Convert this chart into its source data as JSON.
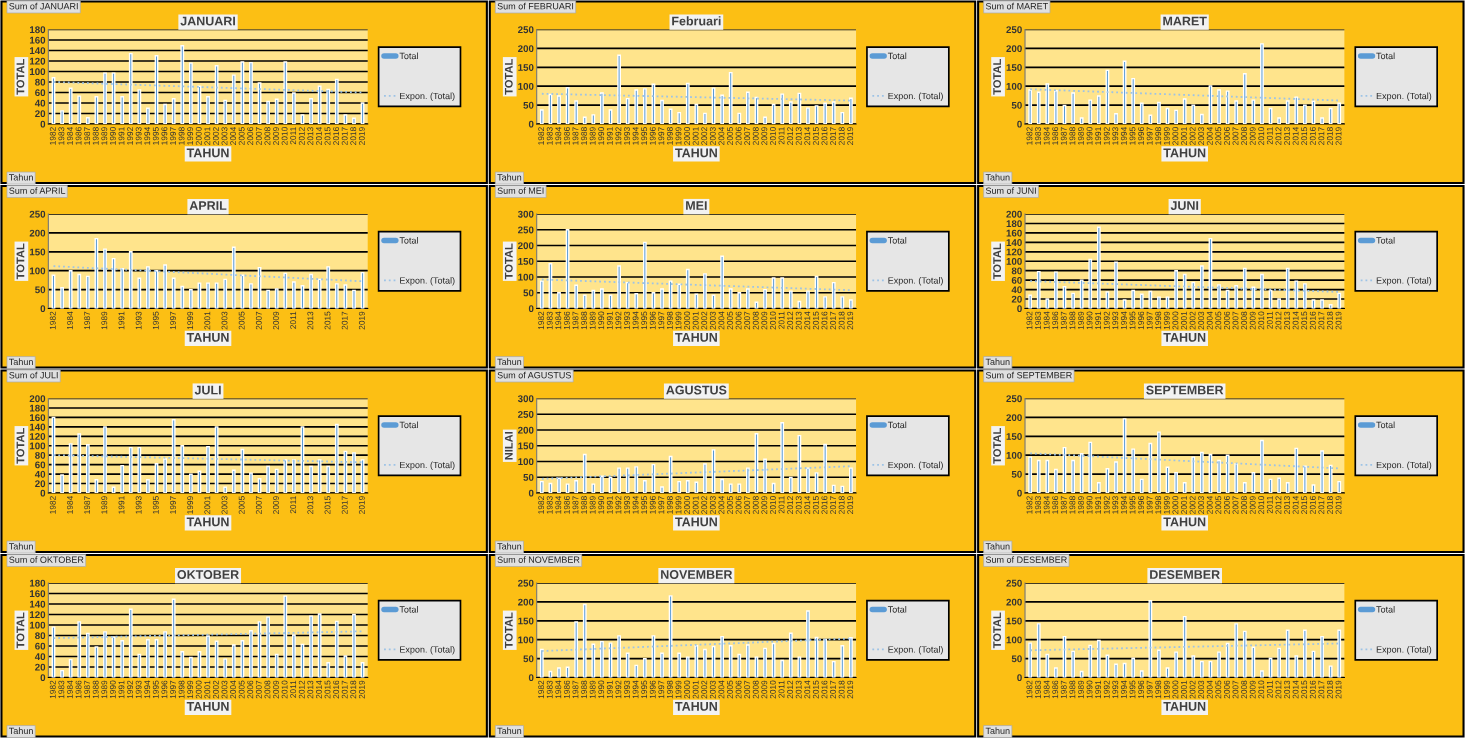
{
  "chart_data": [
    {
      "type": "bar",
      "title": "JANUARI",
      "xlabel": "TAHUN",
      "ylabel": "TOTAL",
      "ylim": [
        0,
        180
      ],
      "yticks": [
        0,
        20,
        40,
        60,
        80,
        100,
        120,
        140,
        160,
        180
      ],
      "grid": "y",
      "legend": "right",
      "annotations": [
        "Sum of JANUARI",
        "Tahun"
      ],
      "categories": [
        "1982",
        "1983",
        "1984",
        "1986",
        "1987",
        "1988",
        "1989",
        "1990",
        "1991",
        "1992",
        "1993",
        "1994",
        "1995",
        "1996",
        "1997",
        "1998",
        "1999",
        "2000",
        "2001",
        "2002",
        "2003",
        "2004",
        "2005",
        "2006",
        "2007",
        "2008",
        "2009",
        "2010",
        "2011",
        "2012",
        "2013",
        "2014",
        "2015",
        "2016",
        "2017",
        "2018",
        "2019"
      ],
      "series": [
        {
          "name": "Total",
          "color": "#5b9bd5",
          "values": [
            88,
            25,
            68,
            53,
            12,
            52,
            97,
            97,
            52,
            134,
            65,
            30,
            130,
            37,
            48,
            149,
            116,
            72,
            52,
            111,
            45,
            93,
            118,
            117,
            78,
            43,
            47,
            118,
            59,
            17,
            48,
            72,
            66,
            85,
            17,
            11,
            40
          ]
        },
        {
          "name": "Expon. (Total)",
          "type": "line",
          "line_style": "dotted",
          "color": "#9dc3e6",
          "values": [
            80,
            null,
            null,
            null,
            null,
            null,
            null,
            null,
            null,
            null,
            null,
            null,
            null,
            null,
            null,
            null,
            null,
            null,
            null,
            null,
            null,
            null,
            null,
            null,
            null,
            null,
            null,
            null,
            null,
            null,
            null,
            null,
            null,
            null,
            null,
            null,
            60
          ]
        }
      ]
    },
    {
      "type": "bar",
      "title": "Februari",
      "xlabel": "TAHUN",
      "ylabel": "TOTAL",
      "ylim": [
        0,
        250
      ],
      "yticks": [
        0,
        50,
        100,
        150,
        200,
        250
      ],
      "grid": "y",
      "legend": "right",
      "annotations": [
        "Sum of FEBRUARI",
        "Tahun"
      ],
      "categories": [
        "1982",
        "1983",
        "1984",
        "1986",
        "1987",
        "1988",
        "1989",
        "1990",
        "1991",
        "1992",
        "1993",
        "1994",
        "1995",
        "1996",
        "1997",
        "1998",
        "1999",
        "2000",
        "2001",
        "2002",
        "2003",
        "2004",
        "2005",
        "2006",
        "2007",
        "2008",
        "2009",
        "2010",
        "2011",
        "2012",
        "2013",
        "2014",
        "2015",
        "2016",
        "2017",
        "2018",
        "2019"
      ],
      "series": [
        {
          "name": "Total",
          "color": "#5b9bd5",
          "values": [
            37,
            78,
            74,
            96,
            61,
            18,
            24,
            82,
            37,
            182,
            67,
            90,
            93,
            105,
            62,
            39,
            30,
            107,
            52,
            28,
            95,
            76,
            136,
            28,
            84,
            70,
            18,
            52,
            79,
            58,
            81,
            42,
            48,
            55,
            58,
            30,
            68
          ]
        },
        {
          "name": "Expon. (Total)",
          "type": "line",
          "line_style": "dotted",
          "color": "#9dc3e6",
          "values": [
            80,
            null,
            null,
            null,
            null,
            null,
            null,
            null,
            null,
            null,
            null,
            null,
            null,
            null,
            null,
            null,
            null,
            null,
            null,
            null,
            null,
            null,
            null,
            null,
            null,
            null,
            null,
            null,
            null,
            null,
            null,
            null,
            null,
            null,
            null,
            null,
            62
          ]
        }
      ]
    },
    {
      "type": "bar",
      "title": "MARET",
      "xlabel": "TAHUN",
      "ylabel": "TOTAL",
      "ylim": [
        0,
        250
      ],
      "yticks": [
        0,
        50,
        100,
        150,
        200,
        250
      ],
      "grid": "y",
      "legend": "right",
      "annotations": [
        "Sum of MARET",
        "Tahun"
      ],
      "categories": [
        "1982",
        "1983",
        "1984",
        "1986",
        "1987",
        "1988",
        "1989",
        "1990",
        "1991",
        "1992",
        "1993",
        "1994",
        "1995",
        "1996",
        "1997",
        "1998",
        "1999",
        "2000",
        "2001",
        "2002",
        "2003",
        "2004",
        "2005",
        "2006",
        "2007",
        "2008",
        "2009",
        "2010",
        "2011",
        "2012",
        "2013",
        "2014",
        "2015",
        "2016",
        "2017",
        "2018",
        "2019"
      ],
      "series": [
        {
          "name": "Total",
          "color": "#5b9bd5",
          "values": [
            90,
            84,
            106,
            88,
            49,
            82,
            16,
            63,
            74,
            142,
            27,
            166,
            120,
            55,
            23,
            57,
            41,
            36,
            66,
            50,
            25,
            101,
            90,
            87,
            61,
            133,
            63,
            212,
            41,
            16,
            61,
            71,
            50,
            60,
            16,
            41,
            55
          ]
        },
        {
          "name": "Expon. (Total)",
          "type": "line",
          "line_style": "dotted",
          "color": "#9dc3e6",
          "values": [
            92,
            null,
            null,
            null,
            null,
            null,
            null,
            null,
            null,
            null,
            null,
            null,
            null,
            null,
            null,
            null,
            null,
            null,
            null,
            null,
            null,
            null,
            null,
            null,
            null,
            null,
            null,
            null,
            null,
            null,
            null,
            null,
            null,
            null,
            null,
            null,
            62
          ]
        }
      ]
    },
    {
      "type": "bar",
      "title": "APRIL",
      "xlabel": "TAHUN",
      "ylabel": "TOTAL",
      "ylim": [
        0,
        250
      ],
      "yticks": [
        0,
        50,
        100,
        150,
        200,
        250
      ],
      "grid": "y",
      "legend": "right",
      "annotations": [
        "Sum of APRIL",
        "Tahun"
      ],
      "categories": [
        "1982",
        null,
        "1984",
        null,
        "1987",
        null,
        "1989",
        null,
        "1991",
        null,
        "1993",
        null,
        "1995",
        null,
        "1997",
        null,
        "1999",
        null,
        "2001",
        null,
        "2003",
        null,
        "2005",
        null,
        "2007",
        null,
        "2009",
        null,
        "2011",
        null,
        "2013",
        null,
        "2015",
        null,
        "2017",
        null,
        "2019"
      ],
      "series": [
        {
          "name": "Total",
          "color": "#5b9bd5",
          "values": [
            88,
            55,
            100,
            90,
            85,
            185,
            157,
            132,
            105,
            150,
            80,
            110,
            100,
            115,
            80,
            58,
            50,
            67,
            67,
            67,
            77,
            162,
            88,
            65,
            108,
            48,
            52,
            93,
            70,
            60,
            90,
            77,
            110,
            65,
            62,
            48,
            95
          ]
        },
        {
          "name": "Expon. (Total)",
          "type": "line",
          "line_style": "dotted",
          "color": "#9dc3e6",
          "values": [
            112,
            null,
            null,
            null,
            null,
            null,
            null,
            null,
            null,
            null,
            null,
            null,
            null,
            null,
            null,
            null,
            null,
            null,
            null,
            null,
            null,
            null,
            null,
            null,
            null,
            null,
            null,
            null,
            null,
            null,
            null,
            null,
            null,
            null,
            null,
            null,
            72
          ]
        }
      ]
    },
    {
      "type": "bar",
      "title": "MEI",
      "xlabel": "TAHUN",
      "ylabel": "TOTAL",
      "ylim": [
        0,
        300
      ],
      "yticks": [
        0,
        50,
        100,
        150,
        200,
        250,
        300
      ],
      "grid": "y",
      "legend": "right",
      "annotations": [
        "Sum of MEI",
        "Tahun"
      ],
      "categories": [
        "1982",
        "1983",
        "1984",
        "1986",
        "1987",
        "1988",
        "1989",
        "1990",
        "1991",
        "1992",
        "1993",
        "1994",
        "1995",
        "1996",
        "1997",
        "1998",
        "1999",
        "2000",
        "2001",
        "2002",
        "2003",
        "2004",
        "2005",
        "2006",
        "2007",
        "2008",
        "2009",
        "2010",
        "2011",
        "2012",
        "2013",
        "2014",
        "2015",
        "2016",
        "2017",
        "2018",
        "2019"
      ],
      "series": [
        {
          "name": "Total",
          "color": "#5b9bd5",
          "values": [
            87,
            142,
            50,
            250,
            74,
            42,
            57,
            62,
            42,
            135,
            82,
            47,
            210,
            50,
            62,
            87,
            77,
            124,
            45,
            110,
            42,
            166,
            62,
            50,
            62,
            20,
            60,
            97,
            97,
            55,
            22,
            55,
            102,
            37,
            82,
            37,
            27
          ]
        },
        {
          "name": "Expon. (Total)",
          "type": "line",
          "line_style": "dotted",
          "color": "#9dc3e6",
          "values": [
            92,
            null,
            null,
            null,
            null,
            null,
            null,
            null,
            null,
            null,
            null,
            null,
            null,
            null,
            null,
            null,
            null,
            null,
            null,
            null,
            null,
            null,
            null,
            null,
            null,
            null,
            null,
            null,
            null,
            null,
            null,
            null,
            null,
            null,
            null,
            null,
            58
          ]
        }
      ]
    },
    {
      "type": "bar",
      "title": "JUNI",
      "xlabel": "TAHUN",
      "ylabel": "TOTAL",
      "ylim": [
        0,
        200
      ],
      "yticks": [
        0,
        20,
        40,
        60,
        80,
        100,
        120,
        140,
        160,
        180,
        200
      ],
      "grid": "y",
      "legend": "right",
      "annotations": [
        "Sum of JUNI",
        "Tahun"
      ],
      "categories": [
        "1982",
        "1983",
        "1984",
        "1986",
        "1987",
        "1988",
        "1989",
        "1990",
        "1991",
        "1992",
        "1993",
        "1994",
        "1995",
        "1996",
        "1997",
        "1998",
        "1999",
        "2000",
        "2001",
        "2002",
        "2003",
        "2004",
        "2005",
        "2006",
        "2007",
        "2008",
        "2009",
        "2010",
        "2011",
        "2012",
        "2013",
        "2014",
        "2015",
        "2016",
        "2017",
        "2018",
        "2019"
      ],
      "series": [
        {
          "name": "Total",
          "color": "#5b9bd5",
          "values": [
            28,
            78,
            20,
            77,
            46,
            32,
            60,
            104,
            172,
            35,
            98,
            18,
            38,
            30,
            36,
            24,
            24,
            80,
            72,
            55,
            90,
            148,
            50,
            38,
            48,
            85,
            45,
            72,
            38,
            20,
            85,
            58,
            52,
            18,
            18,
            8,
            32
          ]
        },
        {
          "name": "Expon. (Total)",
          "type": "line",
          "line_style": "dotted",
          "color": "#9dc3e6",
          "values": [
            58,
            null,
            null,
            null,
            null,
            null,
            null,
            null,
            null,
            null,
            null,
            null,
            null,
            null,
            null,
            null,
            null,
            null,
            null,
            null,
            null,
            null,
            null,
            null,
            null,
            null,
            null,
            null,
            null,
            null,
            null,
            null,
            null,
            null,
            null,
            null,
            35
          ]
        }
      ]
    },
    {
      "type": "bar",
      "title": "JULI",
      "xlabel": "TAHUN",
      "ylabel": "TOTAL",
      "ylim": [
        0,
        200
      ],
      "yticks": [
        0,
        20,
        40,
        60,
        80,
        100,
        120,
        140,
        160,
        180,
        200
      ],
      "grid": "y",
      "legend": "right",
      "annotations": [
        "Sum of JULI",
        "Tahun"
      ],
      "categories": [
        "1982",
        null,
        "1984",
        null,
        "1987",
        null,
        "1989",
        null,
        "1991",
        null,
        "1993",
        null,
        "1995",
        null,
        "1997",
        null,
        "1999",
        null,
        "2001",
        null,
        "2003",
        null,
        "2005",
        null,
        "2007",
        null,
        "2009",
        null,
        "2011",
        null,
        "2013",
        null,
        "2015",
        null,
        "2017",
        null,
        "2019"
      ],
      "series": [
        {
          "name": "Total",
          "color": "#5b9bd5",
          "values": [
            160,
            38,
            104,
            125,
            102,
            28,
            140,
            12,
            58,
            96,
            96,
            28,
            62,
            72,
            155,
            100,
            40,
            46,
            98,
            140,
            12,
            48,
            92,
            42,
            30,
            56,
            50,
            70,
            70,
            140,
            56,
            70,
            56,
            145,
            88,
            85,
            70
          ]
        },
        {
          "name": "Expon. (Total)",
          "type": "line",
          "line_style": "dotted",
          "color": "#9dc3e6",
          "values": [
            80,
            null,
            null,
            null,
            null,
            null,
            null,
            null,
            null,
            null,
            null,
            null,
            null,
            null,
            null,
            null,
            null,
            null,
            null,
            null,
            null,
            null,
            null,
            null,
            null,
            null,
            null,
            null,
            null,
            null,
            null,
            null,
            null,
            null,
            null,
            null,
            65
          ]
        }
      ]
    },
    {
      "type": "bar",
      "title": "AGUSTUS",
      "xlabel": "TAHUN",
      "ylabel": "NILAI",
      "ylim": [
        0,
        300
      ],
      "yticks": [
        0,
        50,
        100,
        150,
        200,
        250,
        300
      ],
      "grid": "y",
      "legend": "right",
      "annotations": [
        "Sum of AGUSTUS",
        "Tahun"
      ],
      "categories": [
        "1982",
        "1983",
        "1984",
        "1986",
        "1987",
        "1988",
        "1989",
        "1990",
        "1991",
        "1992",
        "1993",
        "1994",
        "1995",
        "1996",
        "1997",
        "1998",
        "1999",
        "2000",
        "2001",
        "2002",
        "2003",
        "2004",
        "2005",
        "2006",
        "2007",
        "2008",
        "2009",
        "2010",
        "2011",
        "2012",
        "2013",
        "2014",
        "2015",
        "2016",
        "2017",
        "2018",
        "2019"
      ],
      "series": [
        {
          "name": "Total",
          "color": "#5b9bd5",
          "values": [
            36,
            30,
            47,
            28,
            39,
            122,
            28,
            53,
            49,
            79,
            79,
            83,
            39,
            90,
            19,
            116,
            36,
            39,
            34,
            92,
            137,
            43,
            28,
            28,
            79,
            188,
            107,
            30,
            223,
            49,
            182,
            79,
            64,
            154,
            24,
            21,
            79
          ]
        },
        {
          "name": "Expon. (Total)",
          "type": "line",
          "line_style": "dotted",
          "color": "#9dc3e6",
          "values": [
            45,
            null,
            null,
            null,
            null,
            null,
            null,
            null,
            null,
            null,
            null,
            null,
            null,
            null,
            null,
            null,
            null,
            null,
            null,
            null,
            null,
            null,
            null,
            null,
            null,
            null,
            null,
            null,
            null,
            null,
            null,
            null,
            null,
            null,
            null,
            null,
            85
          ]
        }
      ]
    },
    {
      "type": "bar",
      "title": "SEPTEMBER",
      "xlabel": "TAHUN",
      "ylabel": "TOTAL",
      "ylim": [
        0,
        250
      ],
      "yticks": [
        0,
        50,
        100,
        150,
        200,
        250
      ],
      "grid": "y",
      "legend": "right",
      "annotations": [
        "Sum of SEPTEMBER",
        "Tahun"
      ],
      "categories": [
        "1982",
        "1983",
        "1984",
        "1986",
        "1987",
        "1988",
        "1989",
        "1990",
        "1991",
        "1992",
        "1993",
        "1994",
        "1995",
        "1996",
        "1997",
        "1998",
        "1999",
        "2000",
        "2001",
        "2002",
        "2003",
        "2004",
        "2005",
        "2006",
        "2007",
        "2008",
        "2009",
        "2010",
        "2011",
        "2012",
        "2013",
        "2014",
        "2015",
        "2016",
        "2017",
        "2018",
        "2019"
      ],
      "series": [
        {
          "name": "Total",
          "color": "#5b9bd5",
          "values": [
            95,
            86,
            86,
            62,
            120,
            86,
            104,
            134,
            27,
            64,
            82,
            196,
            116,
            36,
            131,
            161,
            68,
            54,
            27,
            95,
            107,
            102,
            86,
            100,
            77,
            27,
            54,
            139,
            36,
            39,
            27,
            118,
            71,
            21,
            111,
            73,
            30
          ]
        },
        {
          "name": "Expon. (Total)",
          "type": "line",
          "line_style": "dotted",
          "color": "#9dc3e6",
          "values": [
            105,
            null,
            null,
            null,
            null,
            null,
            null,
            null,
            null,
            null,
            null,
            null,
            null,
            null,
            null,
            null,
            null,
            null,
            null,
            null,
            null,
            null,
            null,
            null,
            null,
            null,
            null,
            null,
            null,
            null,
            null,
            null,
            null,
            null,
            null,
            null,
            65
          ]
        }
      ]
    },
    {
      "type": "bar",
      "title": "OKTOBER",
      "xlabel": "TAHUN",
      "ylabel": "TOTAL",
      "ylim": [
        0,
        180
      ],
      "yticks": [
        0,
        20,
        40,
        60,
        80,
        100,
        120,
        140,
        160,
        180
      ],
      "grid": "y",
      "legend": "right",
      "annotations": [
        "Sum of OKTOBER",
        "Tahun"
      ],
      "categories": [
        "1982",
        "1983",
        "1984",
        "1986",
        "1987",
        "1988",
        "1989",
        "1990",
        "1991",
        "1992",
        "1993",
        "1994",
        "1995",
        "1996",
        "1997",
        "1998",
        "1999",
        "2000",
        "2001",
        "2002",
        "2003",
        "2004",
        "2005",
        "2006",
        "2007",
        "2008",
        "2009",
        "2010",
        "2011",
        "2012",
        "2013",
        "2014",
        "2015",
        "2016",
        "2017",
        "2018",
        "2019"
      ],
      "series": [
        {
          "name": "Total",
          "color": "#5b9bd5",
          "values": [
            96,
            13,
            34,
            106,
            84,
            58,
            87,
            77,
            70,
            130,
            44,
            72,
            72,
            87,
            149,
            49,
            38,
            49,
            79,
            69,
            35,
            62,
            70,
            89,
            106,
            115,
            44,
            155,
            81,
            63,
            117,
            121,
            28,
            107,
            41,
            120,
            28
          ]
        },
        {
          "name": "Expon. (Total)",
          "type": "line",
          "line_style": "dotted",
          "color": "#9dc3e6",
          "values": [
            75,
            null,
            null,
            null,
            null,
            null,
            null,
            null,
            null,
            null,
            null,
            null,
            null,
            null,
            null,
            null,
            null,
            null,
            null,
            null,
            null,
            null,
            null,
            null,
            null,
            null,
            null,
            null,
            null,
            null,
            null,
            null,
            null,
            null,
            null,
            null,
            88
          ]
        }
      ]
    },
    {
      "type": "bar",
      "title": "NOVEMBER",
      "xlabel": "TAHUN",
      "ylabel": "TOTAL",
      "ylim": [
        0,
        250
      ],
      "yticks": [
        0,
        50,
        100,
        150,
        200,
        250
      ],
      "grid": "y",
      "legend": "right",
      "annotations": [
        "Sum of NOVEMBER",
        "Tahun"
      ],
      "categories": [
        "1982",
        "1983",
        "1984",
        "1986",
        "1987",
        "1988",
        "1989",
        "1990",
        "1991",
        "1992",
        "1993",
        "1994",
        "1995",
        "1996",
        "1997",
        "1998",
        "1999",
        "2000",
        "2001",
        "2002",
        "2003",
        "2004",
        "2005",
        "2006",
        "2007",
        "2008",
        "2009",
        "2010",
        "2011",
        "2012",
        "2013",
        "2014",
        "2015",
        "2016",
        "2017",
        "2018",
        "2019"
      ],
      "series": [
        {
          "name": "Total",
          "color": "#5b9bd5",
          "values": [
            74,
            16,
            25,
            27,
            147,
            193,
            88,
            95,
            91,
            110,
            64,
            32,
            50,
            110,
            64,
            216,
            64,
            54,
            84,
            74,
            82,
            108,
            84,
            61,
            86,
            54,
            77,
            90,
            45,
            117,
            54,
            176,
            106,
            101,
            42,
            84,
            105
          ]
        },
        {
          "name": "Expon. (Total)",
          "type": "line",
          "line_style": "dotted",
          "color": "#9dc3e6",
          "values": [
            70,
            null,
            null,
            null,
            null,
            null,
            null,
            null,
            null,
            null,
            null,
            null,
            null,
            null,
            null,
            null,
            null,
            null,
            null,
            null,
            null,
            null,
            null,
            null,
            null,
            null,
            null,
            null,
            null,
            null,
            null,
            null,
            null,
            null,
            null,
            null,
            103
          ]
        }
      ]
    },
    {
      "type": "bar",
      "title": "DESEMBER",
      "xlabel": "TAHUN",
      "ylabel": "TOTAL",
      "ylim": [
        0,
        250
      ],
      "yticks": [
        0,
        50,
        100,
        150,
        200,
        250
      ],
      "grid": "y",
      "legend": "right",
      "annotations": [
        "Sum of DESEMBER",
        "Tahun"
      ],
      "categories": [
        "1982",
        "1983",
        "1984",
        "1986",
        "1987",
        "1988",
        "1989",
        "1990",
        "1991",
        "1992",
        "1993",
        "1994",
        "1995",
        "1996",
        "1997",
        "1998",
        "1999",
        "2000",
        "2001",
        "2002",
        "2003",
        "2004",
        "2005",
        "2006",
        "2007",
        "2008",
        "2009",
        "2010",
        "2011",
        "2012",
        "2013",
        "2014",
        "2015",
        "2016",
        "2017",
        "2018",
        "2019"
      ],
      "series": [
        {
          "name": "Total",
          "color": "#5b9bd5",
          "values": [
            91,
            142,
            61,
            25,
            108,
            69,
            16,
            85,
            98,
            59,
            35,
            37,
            51,
            17,
            203,
            72,
            25,
            67,
            161,
            57,
            42,
            42,
            67,
            90,
            142,
            122,
            80,
            17,
            51,
            77,
            125,
            57,
            125,
            69,
            108,
            30,
            125
          ]
        },
        {
          "name": "Expon. (Total)",
          "type": "line",
          "line_style": "dotted",
          "color": "#9dc3e6",
          "values": [
            72,
            null,
            null,
            null,
            null,
            null,
            null,
            null,
            null,
            null,
            null,
            null,
            null,
            null,
            null,
            null,
            null,
            null,
            null,
            null,
            null,
            null,
            null,
            null,
            null,
            null,
            null,
            null,
            null,
            null,
            null,
            null,
            null,
            null,
            null,
            null,
            90
          ]
        }
      ]
    }
  ]
}
